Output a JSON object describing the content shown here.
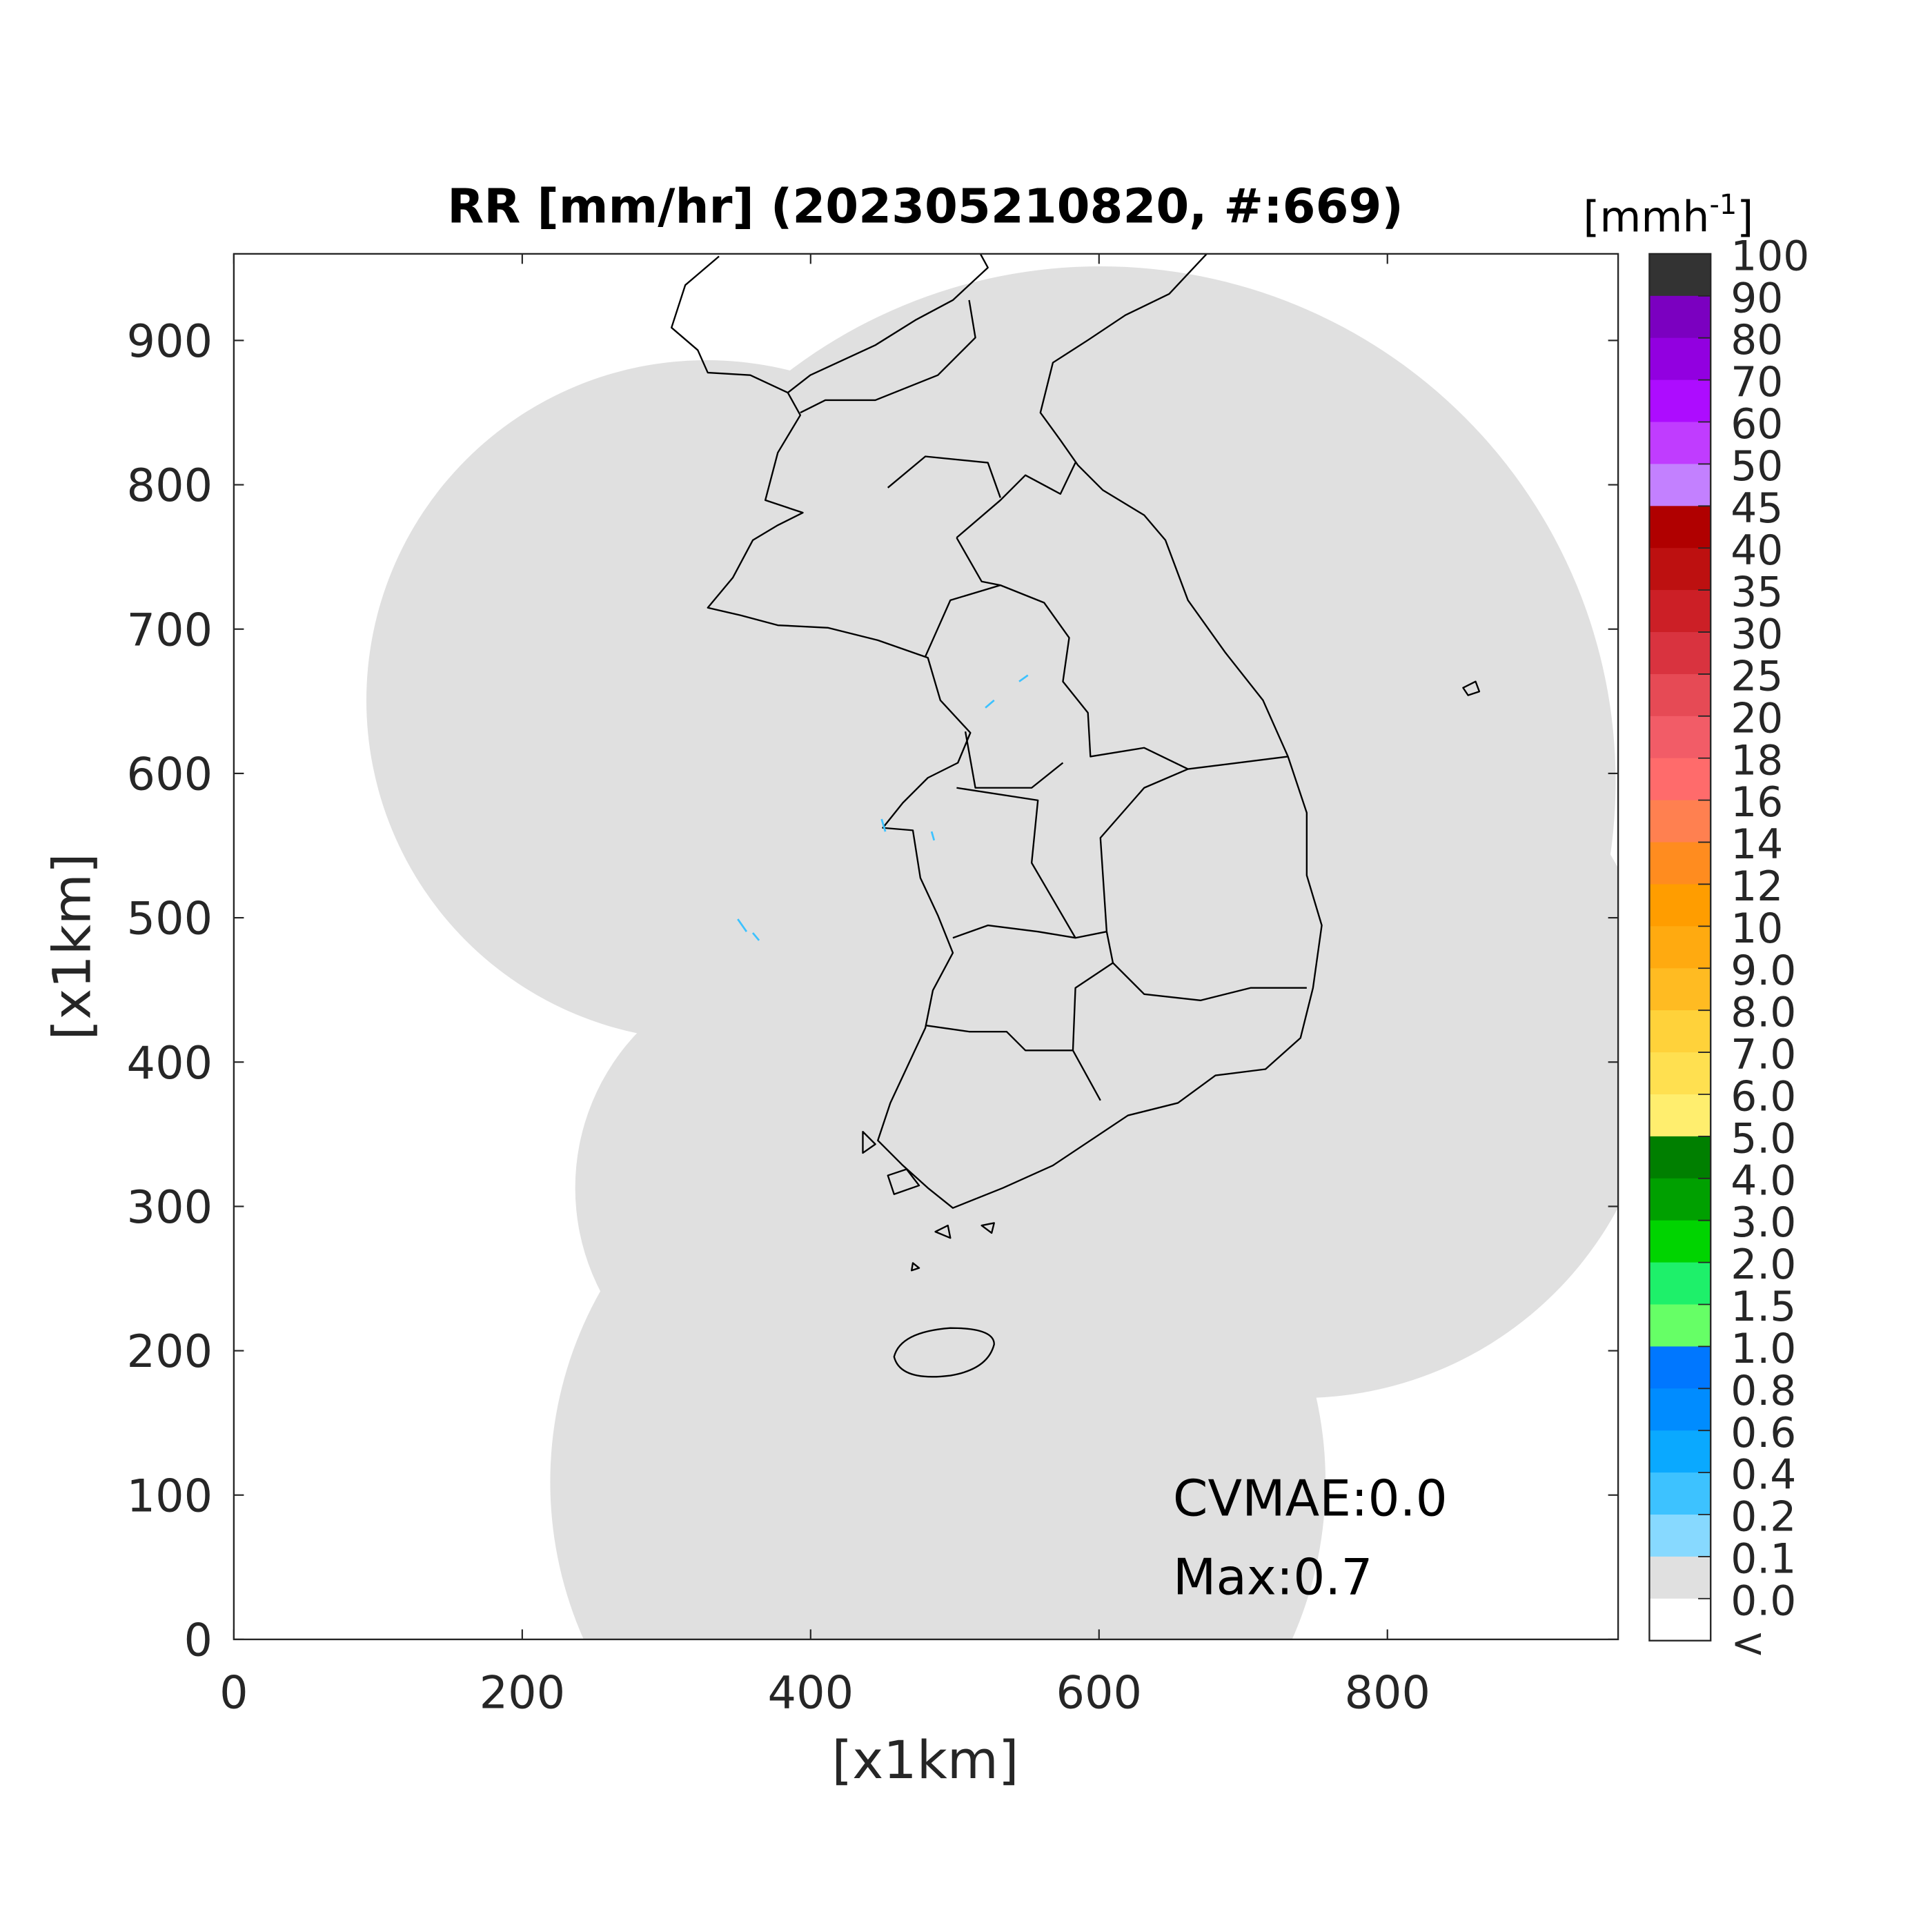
{
  "chart_data": {
    "type": "heatmap",
    "title": "RR [mm/hr] (202305210820, #:669)",
    "xlabel": "[x1km]",
    "ylabel": "[x1km]",
    "xlim": [
      0,
      960
    ],
    "ylim": [
      0,
      960
    ],
    "xticks": [
      "0",
      "200",
      "400",
      "600",
      "800"
    ],
    "yticks": [
      "0",
      "100",
      "200",
      "300",
      "400",
      "500",
      "600",
      "700",
      "800",
      "900"
    ],
    "grid": false,
    "colorbar": {
      "unit_label": "[mmh",
      "unit_exponent": "-1",
      "unit_close": "]",
      "labels": [
        "100",
        "90",
        "80",
        "70",
        "60",
        "50",
        "45",
        "40",
        "35",
        "30",
        "25",
        "20",
        "18",
        "16",
        "14",
        "12",
        "10",
        "9.0",
        "8.0",
        "7.0",
        "6.0",
        "5.0",
        "4.0",
        "3.0",
        "2.0",
        "1.5",
        "1.0",
        "0.8",
        "0.6",
        "0.4",
        "0.2",
        "0.1",
        "0.0",
        "<"
      ],
      "colors": [
        "#333333",
        "#7b00c0",
        "#9200e0",
        "#ad0cff",
        "#c03cff",
        "#c380ff",
        "#b00000",
        "#bd1010",
        "#cc1f26",
        "#d9333f",
        "#e64a55",
        "#f25c67",
        "#ff6b6b",
        "#ff8050",
        "#ff8c1f",
        "#ff9d00",
        "#ffaa10",
        "#ffbb22",
        "#ffd23a",
        "#ffe050",
        "#ffee6e",
        "#007f00",
        "#00a000",
        "#00d400",
        "#1ef06a",
        "#66ff66",
        "#0077ff",
        "#008cff",
        "#0aa9ff",
        "#3dc2ff",
        "#87d9ff",
        "#e0e0e0",
        "#ffffff"
      ]
    },
    "annotations": [
      "CVMAE:0.0",
      "Max:0.7"
    ],
    "max_value": 0.7,
    "coverage_color": "#e0e0e0",
    "rain_color": "#3dc2ff"
  }
}
